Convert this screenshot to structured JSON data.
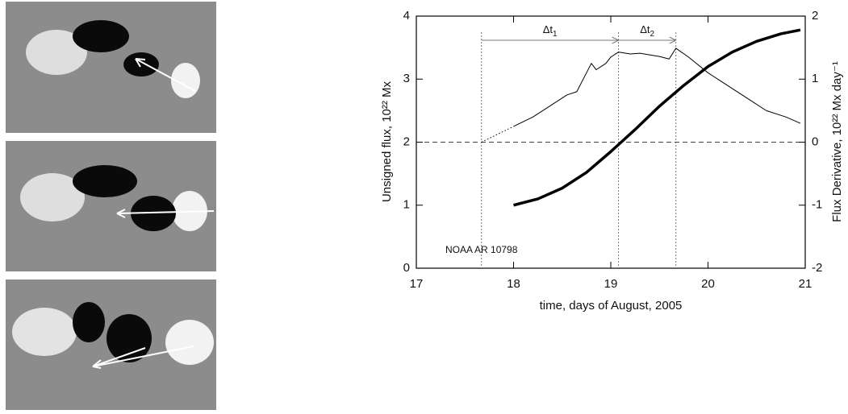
{
  "chart_data": {
    "type": "line",
    "xlabel": "time, days of August, 2005",
    "ylabel": "Unsigned flux, 10²² Mx",
    "y2label": "Flux Derivative, 10²² Mx day⁻¹",
    "xlim": [
      17,
      21
    ],
    "xticks": [
      17,
      18,
      19,
      20,
      21
    ],
    "ylim": [
      0,
      4
    ],
    "yticks": [
      0,
      1,
      2,
      3,
      4
    ],
    "y2lim": [
      -2,
      2
    ],
    "y2ticks": [
      -2,
      -1,
      0,
      1,
      2
    ],
    "series": [
      {
        "color": "#000000",
        "width": 3.5,
        "x": [
          18.0,
          18.25,
          18.5,
          18.75,
          19.0,
          19.25,
          19.5,
          19.75,
          20.0,
          20.25,
          20.5,
          20.75,
          20.95
        ],
        "values": [
          1.0,
          1.1,
          1.27,
          1.52,
          1.85,
          2.2,
          2.57,
          2.9,
          3.2,
          3.43,
          3.6,
          3.72,
          3.78
        ]
      },
      {
        "color": "#000000",
        "width": 1,
        "axis": "y2",
        "x": [
          18.0,
          18.2,
          18.4,
          18.55,
          18.65,
          18.75,
          18.8,
          18.85,
          18.95,
          19.0,
          19.08,
          19.2,
          19.3,
          19.5,
          19.6,
          19.67,
          19.8,
          20.0,
          20.2,
          20.4,
          20.6,
          20.8,
          20.95
        ],
        "values": [
          0.25,
          0.4,
          0.6,
          0.75,
          0.8,
          1.1,
          1.25,
          1.15,
          1.25,
          1.35,
          1.43,
          1.4,
          1.41,
          1.36,
          1.32,
          1.49,
          1.35,
          1.1,
          0.9,
          0.7,
          0.5,
          0.4,
          0.3
        ]
      },
      {
        "color": "#000000",
        "width": 1,
        "axis": "y2",
        "dash": "dotted",
        "x": [
          17.67,
          18.0
        ],
        "values": [
          0,
          0.25
        ]
      }
    ],
    "hline_y2": 0,
    "vlines": [
      17.67,
      19.08,
      19.67
    ],
    "intervals": [
      {
        "text": "Δt",
        "subscript": "1"
      },
      {
        "text": "Δt",
        "subscript": "2"
      }
    ],
    "annotation": "NOAA AR 10798"
  }
}
